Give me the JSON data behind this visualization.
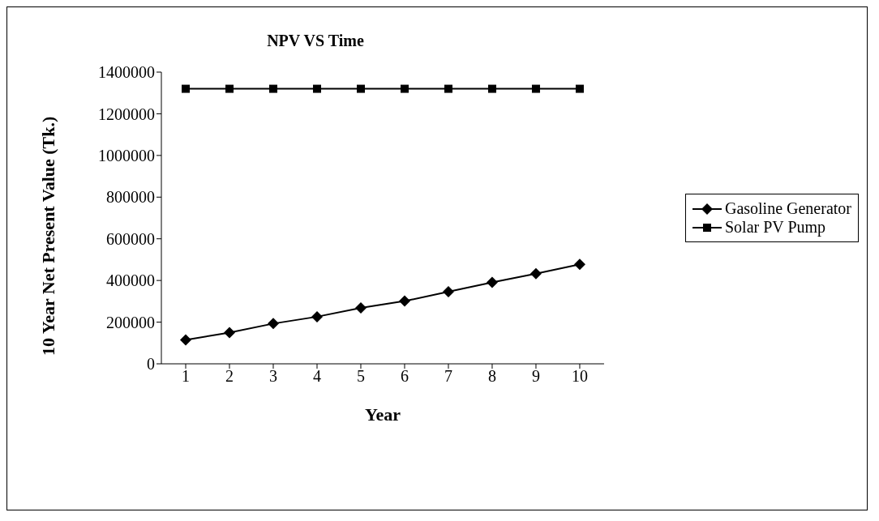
{
  "chart_data": {
    "type": "line",
    "title": "NPV VS Time",
    "xlabel": "Year",
    "ylabel": "10 Year Net Present Value (Tk.)",
    "categories": [
      "1",
      "2",
      "3",
      "4",
      "5",
      "6",
      "7",
      "8",
      "9",
      "10"
    ],
    "series": [
      {
        "name": "Gasoline Generator",
        "color": "#000000",
        "marker": "diamond",
        "values": [
          115000,
          150000,
          193000,
          226000,
          268000,
          301000,
          346000,
          391000,
          433000,
          477000
        ]
      },
      {
        "name": "Solar PV Pump",
        "color": "#000000",
        "marker": "square",
        "values": [
          1320000,
          1320000,
          1320000,
          1320000,
          1320000,
          1320000,
          1320000,
          1320000,
          1320000,
          1320000
        ]
      }
    ],
    "ylim": [
      0,
      1400000
    ],
    "yticks": [
      0,
      200000,
      400000,
      600000,
      800000,
      1000000,
      1200000,
      1400000
    ],
    "grid": false,
    "legend": "right",
    "line_style": "solid"
  }
}
